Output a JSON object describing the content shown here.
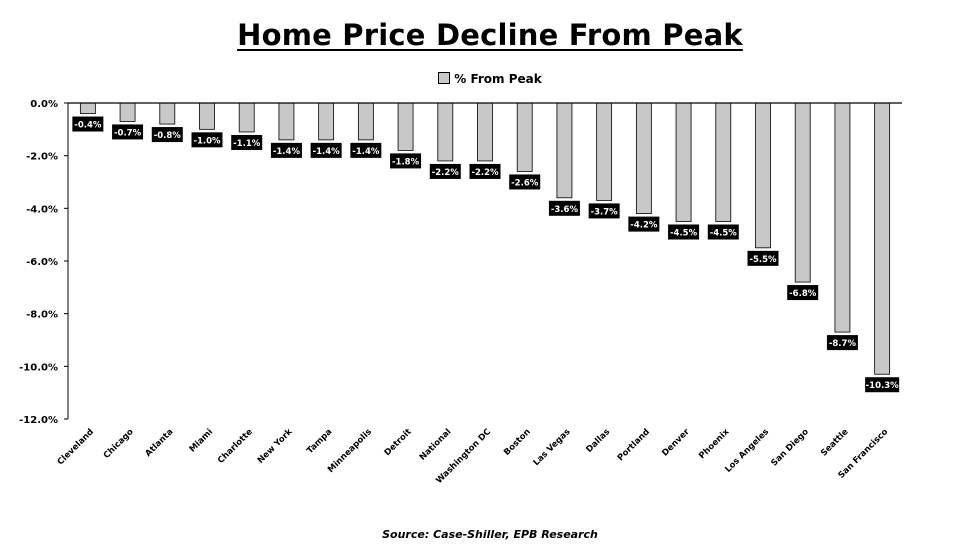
{
  "chart_data": {
    "type": "bar",
    "title": "Home Price Decline From Peak",
    "legend": "% From Peak",
    "source": "Source: Case-Shiller, EPB Research",
    "categories": [
      "Cleveland",
      "Chicago",
      "Atlanta",
      "Miami",
      "Charlotte",
      "New York",
      "Tampa",
      "Minneapolis",
      "Detroit",
      "National",
      "Washington DC",
      "Boston",
      "Las Vegas",
      "Dallas",
      "Portland",
      "Denver",
      "Phoenix",
      "Los Angeles",
      "San Diego",
      "Seattle",
      "San Francisco"
    ],
    "series": [
      {
        "name": "% From Peak",
        "values": [
          -0.4,
          -0.7,
          -0.8,
          -1.0,
          -1.1,
          -1.4,
          -1.4,
          -1.4,
          -1.8,
          -2.2,
          -2.2,
          -2.6,
          -3.6,
          -3.7,
          -4.2,
          -4.5,
          -4.5,
          -5.5,
          -6.8,
          -8.7,
          -10.3
        ],
        "labels": [
          "-0.4%",
          "-0.7%",
          "-0.8%",
          "-1.0%",
          "-1.1%",
          "-1.4%",
          "-1.4%",
          "-1.4%",
          "-1.8%",
          "-2.2%",
          "-2.2%",
          "-2.6%",
          "-3.6%",
          "-3.7%",
          "-4.2%",
          "-4.5%",
          "-4.5%",
          "-5.5%",
          "-6.8%",
          "-8.7%",
          "-10.3%"
        ]
      }
    ],
    "yticks": [
      0,
      -2,
      -4,
      -6,
      -8,
      -10,
      -12
    ],
    "ytick_labels": [
      "0.0%",
      "-2.0%",
      "-4.0%",
      "-6.0%",
      "-8.0%",
      "-10.0%",
      "-12.0%"
    ],
    "ylim": [
      -12,
      0
    ],
    "colors": {
      "bar_fill": "#c8c8c8",
      "bar_stroke": "#000000",
      "label_bg": "#000000",
      "label_text": "#ffffff"
    }
  }
}
